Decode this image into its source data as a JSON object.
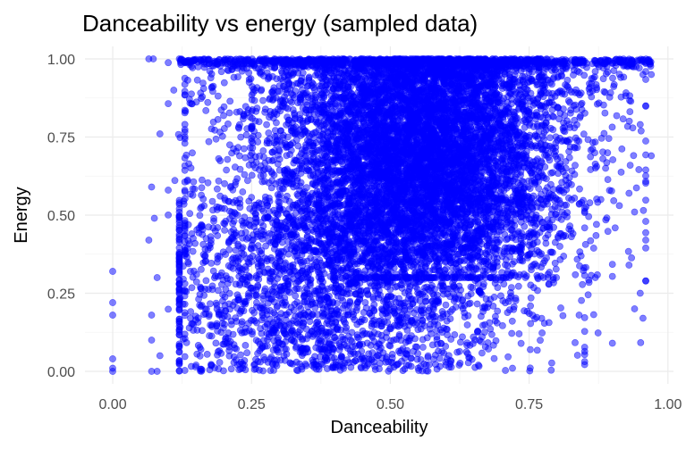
{
  "chart_data": {
    "type": "scatter",
    "title": "Danceability vs energy (sampled data)",
    "xlabel": "Danceability",
    "ylabel": "Energy",
    "xlim": [
      -0.05,
      1.01
    ],
    "ylim": [
      -0.04,
      1.04
    ],
    "x_ticks": [
      "0.00",
      "0.25",
      "0.50",
      "0.75",
      "1.00"
    ],
    "y_ticks": [
      "0.00",
      "0.25",
      "0.50",
      "0.75",
      "1.00"
    ],
    "grid": true,
    "legend": "none",
    "point_color": "#0000ff",
    "point_opacity": 0.5,
    "series": [
      {
        "values": [
          [
            0.0,
            0.01
          ],
          [
            0.0,
            0.0
          ],
          [
            0.0,
            0.04
          ],
          [
            0.0,
            0.18
          ],
          [
            0.0,
            0.22
          ],
          [
            0.0,
            0.32
          ],
          [
            0.065,
            1.0
          ],
          [
            0.073,
            1.0
          ],
          [
            0.085,
            0.76
          ],
          [
            0.11,
            0.9
          ],
          [
            0.12,
            1.0
          ],
          [
            0.07,
            0.59
          ],
          [
            0.1,
            0.58
          ],
          [
            0.075,
            0.49
          ],
          [
            0.065,
            0.42
          ],
          [
            0.08,
            0.3
          ],
          [
            0.07,
            0.18
          ],
          [
            0.07,
            0.1
          ],
          [
            0.085,
            0.05
          ],
          [
            0.08,
            0.0
          ],
          [
            0.07,
            0.0
          ],
          [
            0.13,
            0.73
          ],
          [
            0.13,
            0.45
          ],
          [
            0.14,
            0.32
          ],
          [
            0.15,
            0.02
          ],
          [
            0.955,
            0.95
          ],
          [
            0.97,
            0.95
          ],
          [
            0.96,
            0.85
          ],
          [
            0.95,
            0.79
          ],
          [
            0.97,
            0.69
          ],
          [
            0.96,
            0.48
          ],
          [
            0.96,
            0.42
          ],
          [
            0.95,
            0.25
          ],
          [
            0.955,
            0.17
          ],
          [
            0.94,
            0.2
          ],
          [
            0.93,
            0.57
          ],
          [
            0.9,
            0.09
          ],
          [
            0.93,
            0.34
          ],
          [
            0.94,
            0.51
          ],
          [
            0.72,
            0.01
          ],
          [
            0.6,
            0.02
          ],
          [
            0.55,
            0.01
          ]
        ]
      }
    ]
  }
}
